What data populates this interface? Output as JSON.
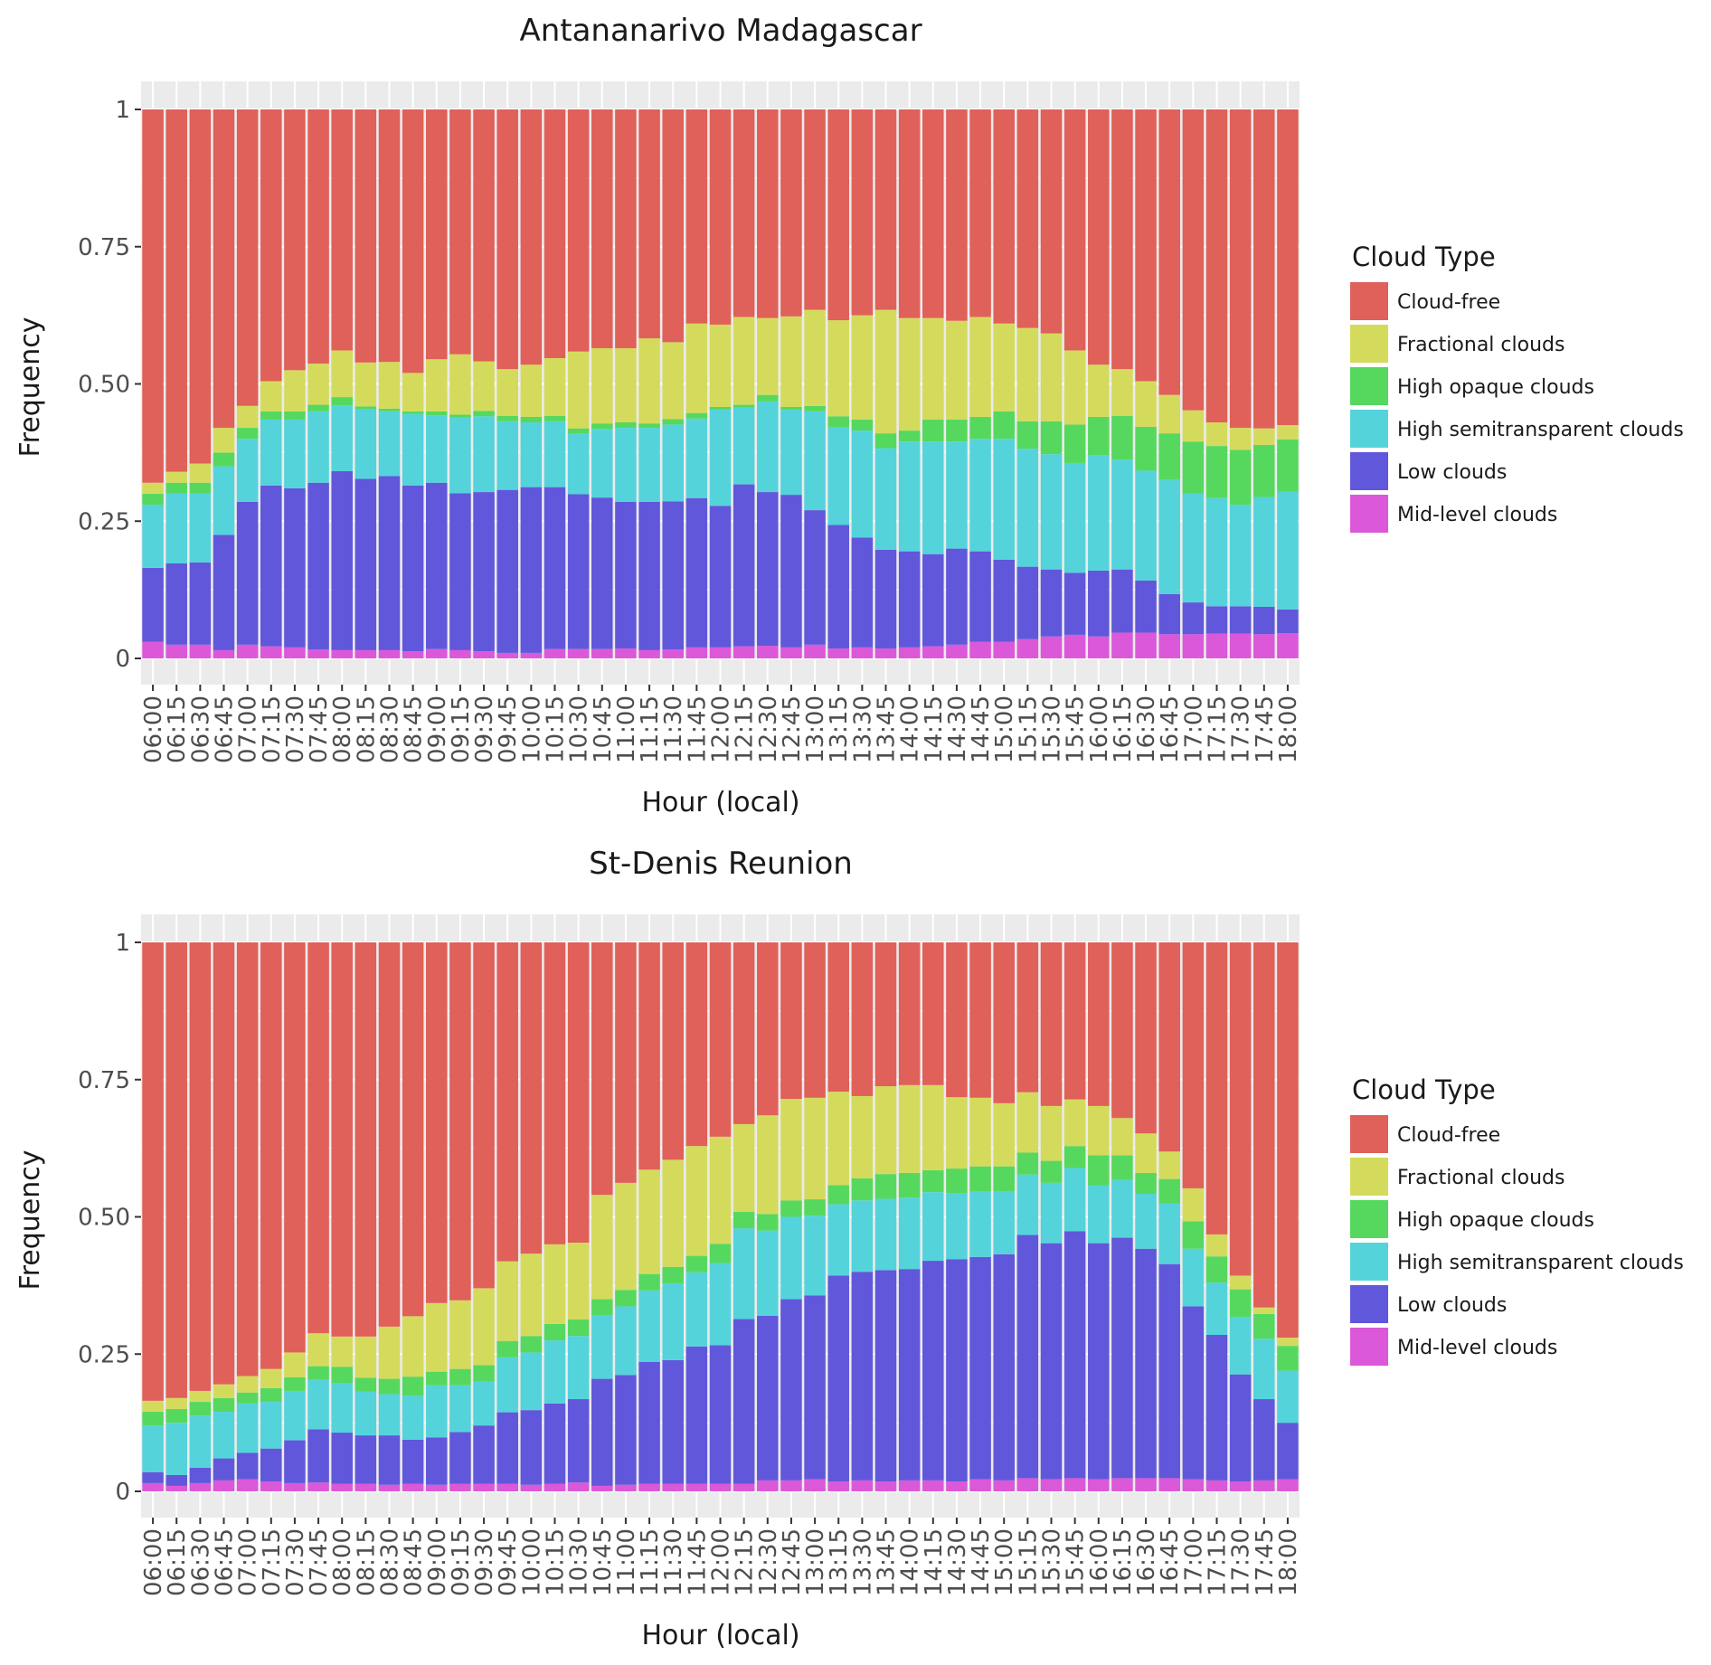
{
  "colors": {
    "Cloud-free": "#e0605a",
    "Fractional clouds": "#d4db5c",
    "High opaque clouds": "#56d85f",
    "High semitransparent clouds": "#55d3db",
    "Low clouds": "#6157db",
    "Mid-level clouds": "#db58d8",
    "panel_background": "#ebebeb",
    "gridline": "#ffffff"
  },
  "chart_data": [
    {
      "type": "bar",
      "stacked": true,
      "title": "Antananarivo Madagascar",
      "xlabel": "Hour (local)",
      "ylabel": "Frequency",
      "ylim": [
        0,
        1
      ],
      "yticks": [
        "0",
        "0.25",
        "0.50",
        "0.75",
        "1"
      ],
      "ytick_values": [
        0,
        0.25,
        0.5,
        0.75,
        1
      ],
      "legend": {
        "title": "Cloud Type",
        "position": "right",
        "labels": [
          "Cloud-free",
          "Fractional clouds",
          "High opaque clouds",
          "High semitransparent clouds",
          "Low clouds",
          "Mid-level clouds"
        ]
      },
      "categories": [
        "06:00",
        "06:15",
        "06:30",
        "06:45",
        "07:00",
        "07:15",
        "07:30",
        "07:45",
        "08:00",
        "08:15",
        "08:30",
        "08:45",
        "09:00",
        "09:15",
        "09:30",
        "09:45",
        "10:00",
        "10:15",
        "10:30",
        "10:45",
        "11:00",
        "11:15",
        "11:30",
        "11:45",
        "12:00",
        "12:15",
        "12:30",
        "12:45",
        "13:00",
        "13:15",
        "13:30",
        "13:45",
        "14:00",
        "14:15",
        "14:30",
        "14:45",
        "15:00",
        "15:15",
        "15:30",
        "15:45",
        "16:00",
        "16:15",
        "16:30",
        "16:45",
        "17:00",
        "17:15",
        "17:30",
        "17:45",
        "18:00"
      ],
      "series": [
        {
          "name": "Mid-level clouds",
          "values": [
            0.03,
            0.025,
            0.025,
            0.015,
            0.025,
            0.022,
            0.02,
            0.016,
            0.015,
            0.015,
            0.015,
            0.013,
            0.017,
            0.015,
            0.013,
            0.01,
            0.01,
            0.017,
            0.017,
            0.017,
            0.018,
            0.015,
            0.016,
            0.02,
            0.02,
            0.022,
            0.023,
            0.02,
            0.025,
            0.018,
            0.02,
            0.018,
            0.02,
            0.022,
            0.025,
            0.03,
            0.03,
            0.035,
            0.04,
            0.043,
            0.04,
            0.047,
            0.047,
            0.044,
            0.044,
            0.045,
            0.045,
            0.044,
            0.046
          ]
        },
        {
          "name": "Low clouds",
          "values": [
            0.135,
            0.148,
            0.15,
            0.21,
            0.26,
            0.293,
            0.29,
            0.304,
            0.326,
            0.312,
            0.317,
            0.302,
            0.303,
            0.286,
            0.29,
            0.297,
            0.302,
            0.295,
            0.282,
            0.276,
            0.267,
            0.27,
            0.27,
            0.272,
            0.258,
            0.295,
            0.28,
            0.278,
            0.245,
            0.225,
            0.2,
            0.18,
            0.175,
            0.168,
            0.175,
            0.165,
            0.15,
            0.132,
            0.122,
            0.113,
            0.12,
            0.115,
            0.095,
            0.073,
            0.058,
            0.05,
            0.05,
            0.05,
            0.043
          ]
        },
        {
          "name": "High semitransparent clouds",
          "values": [
            0.115,
            0.127,
            0.125,
            0.125,
            0.115,
            0.12,
            0.125,
            0.13,
            0.12,
            0.127,
            0.118,
            0.13,
            0.123,
            0.138,
            0.138,
            0.125,
            0.118,
            0.12,
            0.11,
            0.125,
            0.135,
            0.135,
            0.14,
            0.145,
            0.175,
            0.14,
            0.165,
            0.155,
            0.18,
            0.178,
            0.195,
            0.185,
            0.2,
            0.205,
            0.195,
            0.205,
            0.22,
            0.215,
            0.21,
            0.2,
            0.21,
            0.2,
            0.2,
            0.208,
            0.198,
            0.197,
            0.185,
            0.2,
            0.215
          ]
        },
        {
          "name": "High opaque clouds",
          "values": [
            0.02,
            0.02,
            0.02,
            0.025,
            0.02,
            0.015,
            0.015,
            0.012,
            0.015,
            0.005,
            0.005,
            0.005,
            0.007,
            0.005,
            0.01,
            0.01,
            0.01,
            0.01,
            0.01,
            0.01,
            0.01,
            0.008,
            0.01,
            0.01,
            0.005,
            0.005,
            0.012,
            0.005,
            0.01,
            0.02,
            0.02,
            0.027,
            0.02,
            0.04,
            0.04,
            0.04,
            0.05,
            0.05,
            0.06,
            0.07,
            0.07,
            0.08,
            0.08,
            0.085,
            0.095,
            0.095,
            0.1,
            0.095,
            0.095
          ]
        },
        {
          "name": "Fractional clouds",
          "values": [
            0.02,
            0.02,
            0.035,
            0.045,
            0.04,
            0.055,
            0.075,
            0.075,
            0.085,
            0.08,
            0.085,
            0.07,
            0.095,
            0.11,
            0.09,
            0.085,
            0.095,
            0.105,
            0.14,
            0.137,
            0.135,
            0.155,
            0.14,
            0.163,
            0.15,
            0.16,
            0.14,
            0.165,
            0.175,
            0.175,
            0.19,
            0.225,
            0.205,
            0.185,
            0.18,
            0.182,
            0.16,
            0.17,
            0.16,
            0.135,
            0.095,
            0.085,
            0.083,
            0.07,
            0.057,
            0.043,
            0.04,
            0.03,
            0.026
          ]
        },
        {
          "name": "Cloud-free",
          "values": [
            0.68,
            0.66,
            0.645,
            0.58,
            0.54,
            0.495,
            0.475,
            0.463,
            0.439,
            0.461,
            0.46,
            0.48,
            0.455,
            0.446,
            0.459,
            0.473,
            0.465,
            0.453,
            0.441,
            0.435,
            0.435,
            0.417,
            0.424,
            0.39,
            0.392,
            0.378,
            0.38,
            0.377,
            0.365,
            0.384,
            0.375,
            0.365,
            0.38,
            0.38,
            0.385,
            0.378,
            0.39,
            0.398,
            0.408,
            0.439,
            0.465,
            0.473,
            0.495,
            0.52,
            0.548,
            0.57,
            0.58,
            0.581,
            0.575
          ]
        }
      ]
    },
    {
      "type": "bar",
      "stacked": true,
      "title": "St-Denis Reunion",
      "xlabel": "Hour (local)",
      "ylabel": "Frequency",
      "ylim": [
        0,
        1
      ],
      "yticks": [
        "0",
        "0.25",
        "0.50",
        "0.75",
        "1"
      ],
      "ytick_values": [
        0,
        0.25,
        0.5,
        0.75,
        1
      ],
      "legend": {
        "title": "Cloud Type",
        "position": "right",
        "labels": [
          "Cloud-free",
          "Fractional clouds",
          "High opaque clouds",
          "High semitransparent clouds",
          "Low clouds",
          "Mid-level clouds"
        ]
      },
      "categories": [
        "06:00",
        "06:15",
        "06:30",
        "06:45",
        "07:00",
        "07:15",
        "07:30",
        "07:45",
        "08:00",
        "08:15",
        "08:30",
        "08:45",
        "09:00",
        "09:15",
        "09:30",
        "09:45",
        "10:00",
        "10:15",
        "10:30",
        "10:45",
        "11:00",
        "11:15",
        "11:30",
        "11:45",
        "12:00",
        "12:15",
        "12:30",
        "12:45",
        "13:00",
        "13:15",
        "13:30",
        "13:45",
        "14:00",
        "14:15",
        "14:30",
        "14:45",
        "15:00",
        "15:15",
        "15:30",
        "15:45",
        "16:00",
        "16:15",
        "16:30",
        "16:45",
        "17:00",
        "17:15",
        "17:30",
        "17:45",
        "18:00"
      ],
      "series": [
        {
          "name": "Mid-level clouds",
          "values": [
            0.015,
            0.01,
            0.015,
            0.02,
            0.022,
            0.018,
            0.015,
            0.016,
            0.014,
            0.014,
            0.012,
            0.014,
            0.012,
            0.014,
            0.014,
            0.014,
            0.012,
            0.014,
            0.016,
            0.01,
            0.012,
            0.014,
            0.014,
            0.014,
            0.014,
            0.014,
            0.02,
            0.02,
            0.022,
            0.018,
            0.02,
            0.018,
            0.02,
            0.02,
            0.018,
            0.022,
            0.02,
            0.024,
            0.022,
            0.024,
            0.022,
            0.024,
            0.024,
            0.024,
            0.022,
            0.02,
            0.018,
            0.02,
            0.022
          ]
        },
        {
          "name": "Low clouds",
          "values": [
            0.02,
            0.02,
            0.028,
            0.04,
            0.048,
            0.06,
            0.078,
            0.097,
            0.093,
            0.088,
            0.09,
            0.08,
            0.086,
            0.094,
            0.106,
            0.13,
            0.136,
            0.146,
            0.152,
            0.195,
            0.2,
            0.222,
            0.225,
            0.25,
            0.252,
            0.3,
            0.3,
            0.33,
            0.335,
            0.375,
            0.38,
            0.385,
            0.385,
            0.4,
            0.405,
            0.405,
            0.412,
            0.443,
            0.43,
            0.45,
            0.43,
            0.438,
            0.418,
            0.39,
            0.315,
            0.265,
            0.195,
            0.148,
            0.103
          ]
        },
        {
          "name": "High semitransparent clouds",
          "values": [
            0.085,
            0.095,
            0.095,
            0.085,
            0.09,
            0.085,
            0.09,
            0.09,
            0.09,
            0.08,
            0.075,
            0.08,
            0.095,
            0.085,
            0.08,
            0.1,
            0.105,
            0.115,
            0.115,
            0.115,
            0.125,
            0.13,
            0.14,
            0.135,
            0.15,
            0.165,
            0.155,
            0.15,
            0.145,
            0.13,
            0.13,
            0.13,
            0.13,
            0.125,
            0.12,
            0.12,
            0.115,
            0.11,
            0.11,
            0.115,
            0.105,
            0.105,
            0.1,
            0.11,
            0.105,
            0.095,
            0.105,
            0.11,
            0.095
          ]
        },
        {
          "name": "High opaque clouds",
          "values": [
            0.025,
            0.025,
            0.025,
            0.025,
            0.02,
            0.025,
            0.025,
            0.025,
            0.03,
            0.025,
            0.028,
            0.035,
            0.025,
            0.03,
            0.03,
            0.03,
            0.03,
            0.03,
            0.03,
            0.03,
            0.03,
            0.03,
            0.03,
            0.03,
            0.035,
            0.03,
            0.03,
            0.03,
            0.03,
            0.035,
            0.04,
            0.045,
            0.045,
            0.04,
            0.045,
            0.045,
            0.045,
            0.04,
            0.04,
            0.04,
            0.055,
            0.045,
            0.038,
            0.045,
            0.05,
            0.048,
            0.05,
            0.045,
            0.045
          ]
        },
        {
          "name": "Fractional clouds",
          "values": [
            0.02,
            0.02,
            0.02,
            0.025,
            0.03,
            0.035,
            0.045,
            0.06,
            0.055,
            0.075,
            0.095,
            0.11,
            0.125,
            0.125,
            0.14,
            0.145,
            0.15,
            0.145,
            0.14,
            0.19,
            0.195,
            0.19,
            0.195,
            0.2,
            0.195,
            0.16,
            0.18,
            0.185,
            0.185,
            0.17,
            0.15,
            0.16,
            0.16,
            0.155,
            0.13,
            0.125,
            0.115,
            0.11,
            0.1,
            0.085,
            0.09,
            0.068,
            0.072,
            0.05,
            0.06,
            0.04,
            0.025,
            0.012,
            0.015
          ]
        },
        {
          "name": "Cloud-free",
          "values": [
            0.835,
            0.83,
            0.817,
            0.805,
            0.79,
            0.777,
            0.747,
            0.712,
            0.718,
            0.718,
            0.7,
            0.681,
            0.657,
            0.652,
            0.63,
            0.581,
            0.567,
            0.55,
            0.547,
            0.46,
            0.438,
            0.414,
            0.396,
            0.371,
            0.354,
            0.331,
            0.315,
            0.285,
            0.283,
            0.272,
            0.28,
            0.262,
            0.26,
            0.26,
            0.282,
            0.283,
            0.293,
            0.273,
            0.298,
            0.286,
            0.298,
            0.32,
            0.348,
            0.381,
            0.448,
            0.532,
            0.607,
            0.665,
            0.72
          ]
        }
      ]
    }
  ]
}
